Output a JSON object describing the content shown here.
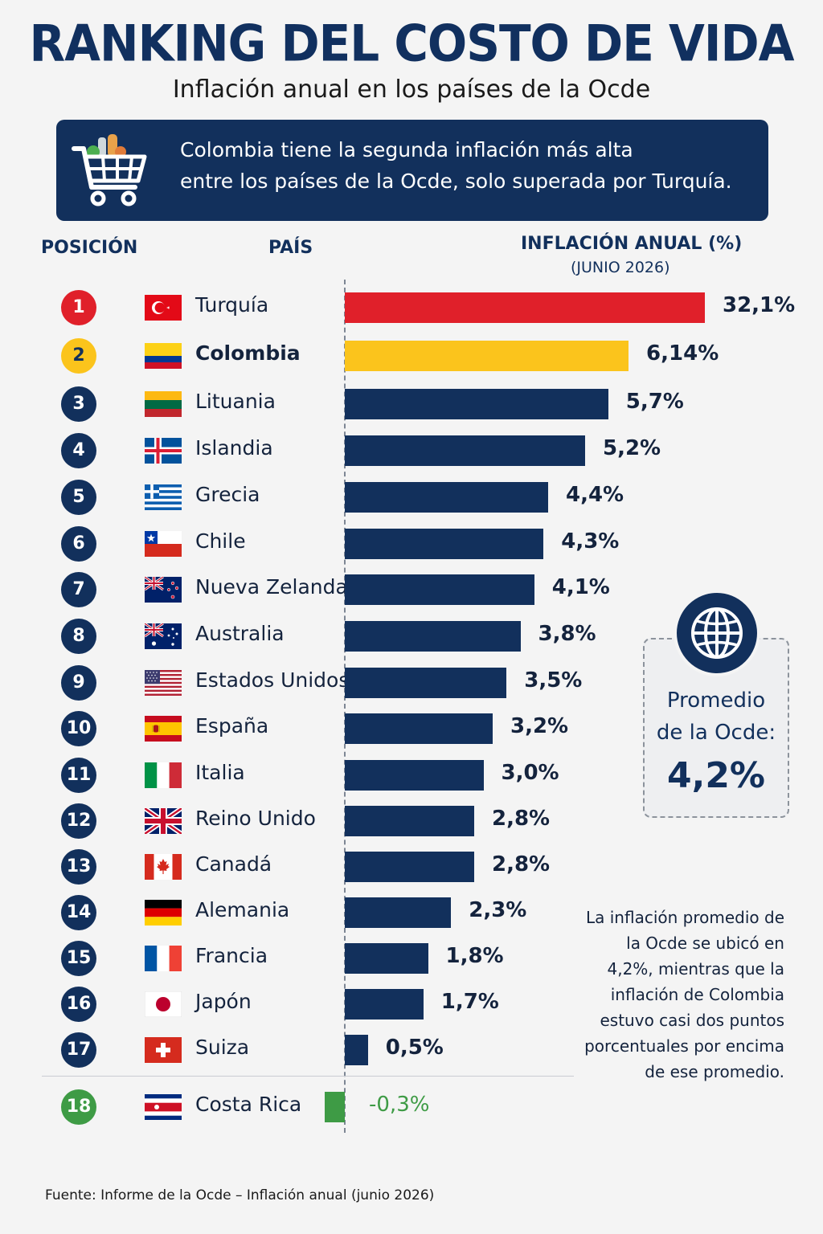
{
  "title": "RANKING DEL COSTO DE VIDA",
  "subtitle": "Inflación anual en los países de la Ocde",
  "banner": {
    "line1": "Colombia tiene la segunda inflación más alta",
    "line2": "entre los países de la Ocde, solo superada por Turquía.",
    "icon": "shopping-cart-icon"
  },
  "headers": {
    "position": "POSICIÓN",
    "country": "PAÍS",
    "inflation": "INFLACIÓN ANUAL (%)",
    "inflation_sub": "(JUNIO 2026)"
  },
  "colors": {
    "navy": "#12305c",
    "red": "#e0202a",
    "yellow": "#fbc41c",
    "green": "#3e9b45"
  },
  "chart_data": {
    "type": "bar",
    "orientation": "horizontal",
    "categories": [
      "Turquía",
      "Colombia",
      "Lituania",
      "Islandia",
      "Grecia",
      "Chile",
      "Nueva Zelanda",
      "Australia",
      "Estados Unidos",
      "España",
      "Italia",
      "Reino Unido",
      "Canadá",
      "Alemania",
      "Francia",
      "Japón",
      "Suiza",
      "Costa Rica"
    ],
    "positions": [
      "1",
      "2",
      "3",
      "4",
      "5",
      "6",
      "7",
      "8",
      "9",
      "10",
      "11",
      "12",
      "13",
      "14",
      "15",
      "16",
      "17",
      "18"
    ],
    "values": [
      32.1,
      6.14,
      5.7,
      5.2,
      4.4,
      4.3,
      4.1,
      3.8,
      3.5,
      3.2,
      3.0,
      2.8,
      2.8,
      2.3,
      1.8,
      1.7,
      0.5,
      -0.3
    ],
    "value_labels": [
      "32,1%",
      "6,14%",
      "5,7%",
      "5,2%",
      "4,4%",
      "4,3%",
      "4,1%",
      "3,8%",
      "3,5%",
      "3,2%",
      "3,0%",
      "2,8%",
      "2,8%",
      "2,3%",
      "1,8%",
      "1,7%",
      "0,5%",
      "-0,3%"
    ],
    "flags": [
      "turkey-flag-icon",
      "colombia-flag-icon",
      "lithuania-flag-icon",
      "iceland-flag-icon",
      "greece-flag-icon",
      "chile-flag-icon",
      "new-zealand-flag-icon",
      "australia-flag-icon",
      "usa-flag-icon",
      "spain-flag-icon",
      "italy-flag-icon",
      "uk-flag-icon",
      "canada-flag-icon",
      "germany-flag-icon",
      "france-flag-icon",
      "japan-flag-icon",
      "switzerland-flag-icon",
      "costa-rica-flag-icon"
    ],
    "highlight_colors": {
      "Turquía": "#e0202a",
      "Colombia": "#fbc41c",
      "Costa Rica": "#3e9b45"
    },
    "axis_break": "Turquía bar is truncated (axis break)"
  },
  "average": {
    "label_line1": "Promedio",
    "label_line2": "de la Ocde:",
    "value": "4,2%",
    "icon": "globe-icon"
  },
  "note": "La inflación promedio de la Ocde se ubicó en 4,2%, mientras que la inflación de Colombia estuvo casi dos puntos porcentuales por encima de ese promedio.",
  "source": "Fuente: Informe de la Ocde – Inflación anual (junio 2026)"
}
